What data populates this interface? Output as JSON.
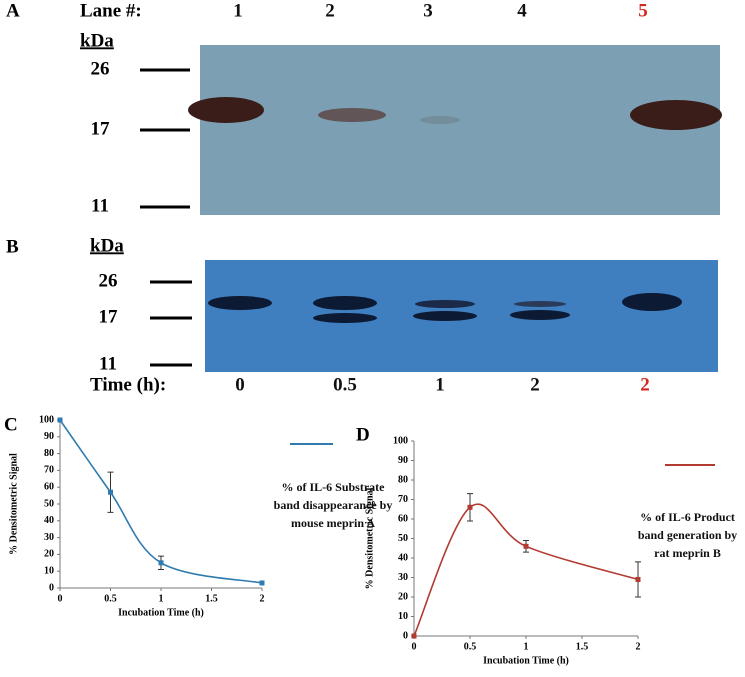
{
  "blot_a": {
    "panel_label": "A",
    "lane_heading": "Lane #:",
    "lanes": [
      "1",
      "2",
      "3",
      "4",
      "5"
    ],
    "lane_colors": [
      "#111111",
      "#111111",
      "#111111",
      "#111111",
      "#d42a1e"
    ],
    "unit": "kDa",
    "markers": [
      "26",
      "17",
      "11"
    ]
  },
  "blot_b": {
    "panel_label": "B",
    "unit": "kDa",
    "markers": [
      "26",
      "17",
      "11"
    ],
    "time_heading": "Time (h):",
    "times": [
      "0",
      "0.5",
      "1",
      "2",
      "2"
    ],
    "time_colors": [
      "#111111",
      "#111111",
      "#111111",
      "#111111",
      "#d42a1e"
    ]
  },
  "chart_data": [
    {
      "type": "line",
      "panel_label": "C",
      "x_label": "Incubation Time (h)",
      "y_label": "% Densitometric Signal",
      "x": [
        0,
        0.5,
        1,
        2
      ],
      "xlim": [
        0,
        2
      ],
      "xticks": [
        0,
        0.5,
        1,
        1.5,
        2
      ],
      "ylim": [
        0,
        100
      ],
      "yticks": [
        0,
        10,
        20,
        30,
        40,
        50,
        60,
        70,
        80,
        90,
        100
      ],
      "series": [
        {
          "name": "% of IL-6 Substrate band disappearance by mouse meprin A",
          "color": "#2f7bb0",
          "values": [
            100,
            57,
            15,
            3
          ],
          "errors": [
            null,
            12,
            4,
            null
          ]
        }
      ]
    },
    {
      "type": "line",
      "panel_label": "D",
      "x_label": "Incubation Time (h)",
      "y_label": "% Densitometric Signal",
      "x": [
        0,
        0.5,
        1,
        2
      ],
      "xlim": [
        0,
        2
      ],
      "xticks": [
        0,
        0.5,
        1,
        1.5,
        2
      ],
      "ylim": [
        0,
        100
      ],
      "yticks": [
        0,
        10,
        20,
        30,
        40,
        50,
        60,
        70,
        80,
        90,
        100
      ],
      "series": [
        {
          "name": "% of IL-6 Product band generation by rat meprin B",
          "color": "#b23a30",
          "values": [
            0,
            66,
            46,
            29
          ],
          "errors": [
            null,
            7,
            3,
            9
          ]
        }
      ]
    }
  ]
}
